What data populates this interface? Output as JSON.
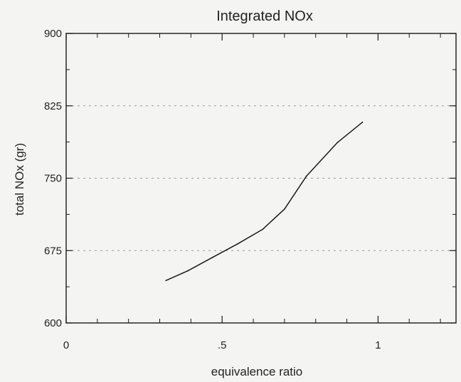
{
  "chart_data": {
    "type": "line",
    "title": "Integrated NOx",
    "xlabel": "equivalence ratio",
    "ylabel": "total NOx (gr)",
    "xlim": [
      0,
      1.25
    ],
    "ylim": [
      600,
      900
    ],
    "xticks": [
      0,
      0.5,
      1
    ],
    "xtick_labels": [
      "0",
      ".5",
      "1"
    ],
    "yticks": [
      600,
      675,
      750,
      825,
      900
    ],
    "ytick_labels": [
      "600",
      "675",
      "750",
      "825",
      "900"
    ],
    "grid": true,
    "legend": "none",
    "colors": {
      "line": "#1a1a1a",
      "axis": "#1a1a1a",
      "grid": "#9a9a9a"
    },
    "series": [
      {
        "x": [
          0.32,
          0.39,
          0.47,
          0.55,
          0.63,
          0.7,
          0.77,
          0.87,
          0.95
        ],
        "y": [
          644,
          654,
          668,
          682,
          697,
          718,
          752,
          787,
          808
        ]
      }
    ]
  }
}
